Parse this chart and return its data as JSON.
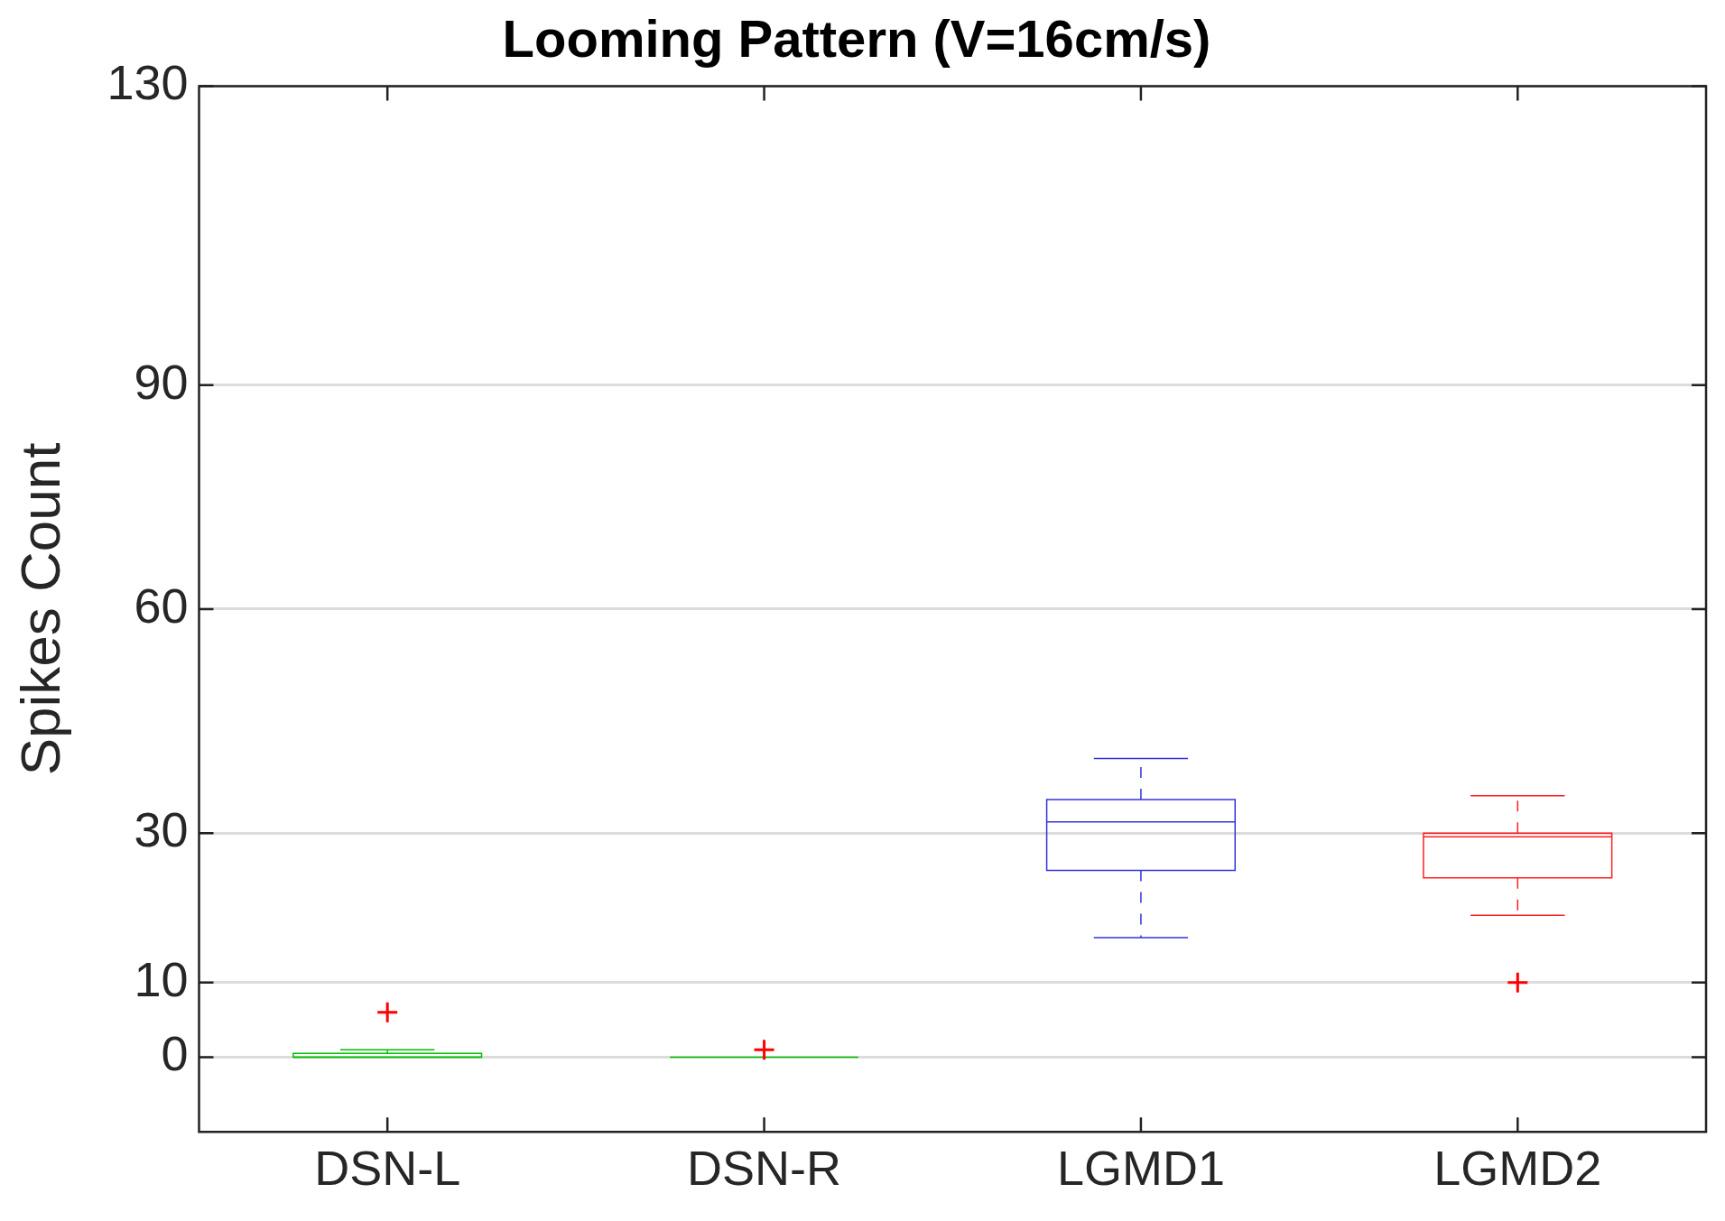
{
  "chart_data": {
    "type": "box",
    "title": "Looming Pattern (V=16cm/s)",
    "ylabel": "Spikes Count",
    "categories": [
      "DSN-L",
      "DSN-R",
      "LGMD1",
      "LGMD2"
    ],
    "colors": [
      "#00c000",
      "#00c000",
      "#3333dd",
      "#ff2020"
    ],
    "boxes": [
      {
        "low": 0,
        "q1": 0,
        "median": 0,
        "q3": 0.5,
        "high": 1
      },
      {
        "low": 0,
        "q1": 0,
        "median": 0,
        "q3": 0,
        "high": 0
      },
      {
        "low": 16,
        "q1": 25,
        "median": 31.5,
        "q3": 34.5,
        "high": 40
      },
      {
        "low": 19,
        "q1": 24,
        "median": 29.5,
        "q3": 30,
        "high": 35
      }
    ],
    "series": [
      {
        "type": "scatter",
        "color": "#ff0000",
        "x": [
          "DSN-L",
          "DSN-R",
          "LGMD2"
        ],
        "values": [
          6,
          1,
          10
        ]
      }
    ],
    "ylim": [
      -10,
      130
    ],
    "yticks": [
      0,
      10,
      30,
      60,
      90,
      130
    ],
    "grid": "y",
    "marker": "cross"
  }
}
